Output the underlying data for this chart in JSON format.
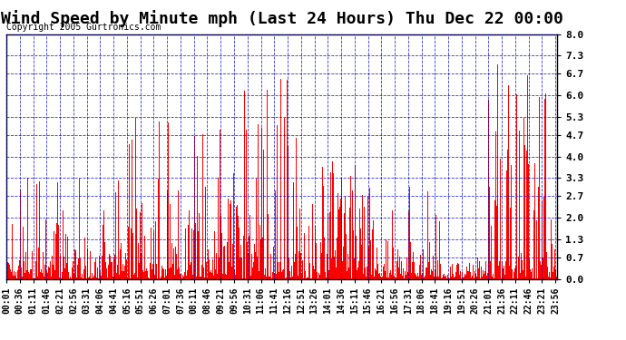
{
  "title": "Wind Speed by Minute mph (Last 24 Hours) Thu Dec 22 00:00",
  "copyright": "Copyright 2005 Gurtronics.com",
  "bar_color": "#ff0000",
  "background_color": "#ffffff",
  "grid_color": "#0000cc",
  "yticks": [
    0.0,
    0.7,
    1.3,
    2.0,
    2.7,
    3.3,
    4.0,
    4.7,
    5.3,
    6.0,
    6.7,
    7.3,
    8.0
  ],
  "ylim": [
    0.0,
    8.0
  ],
  "title_fontsize": 13,
  "tick_fontsize": 7,
  "copyright_fontsize": 7,
  "xtick_step_minutes": 35,
  "n_minutes": 1440
}
